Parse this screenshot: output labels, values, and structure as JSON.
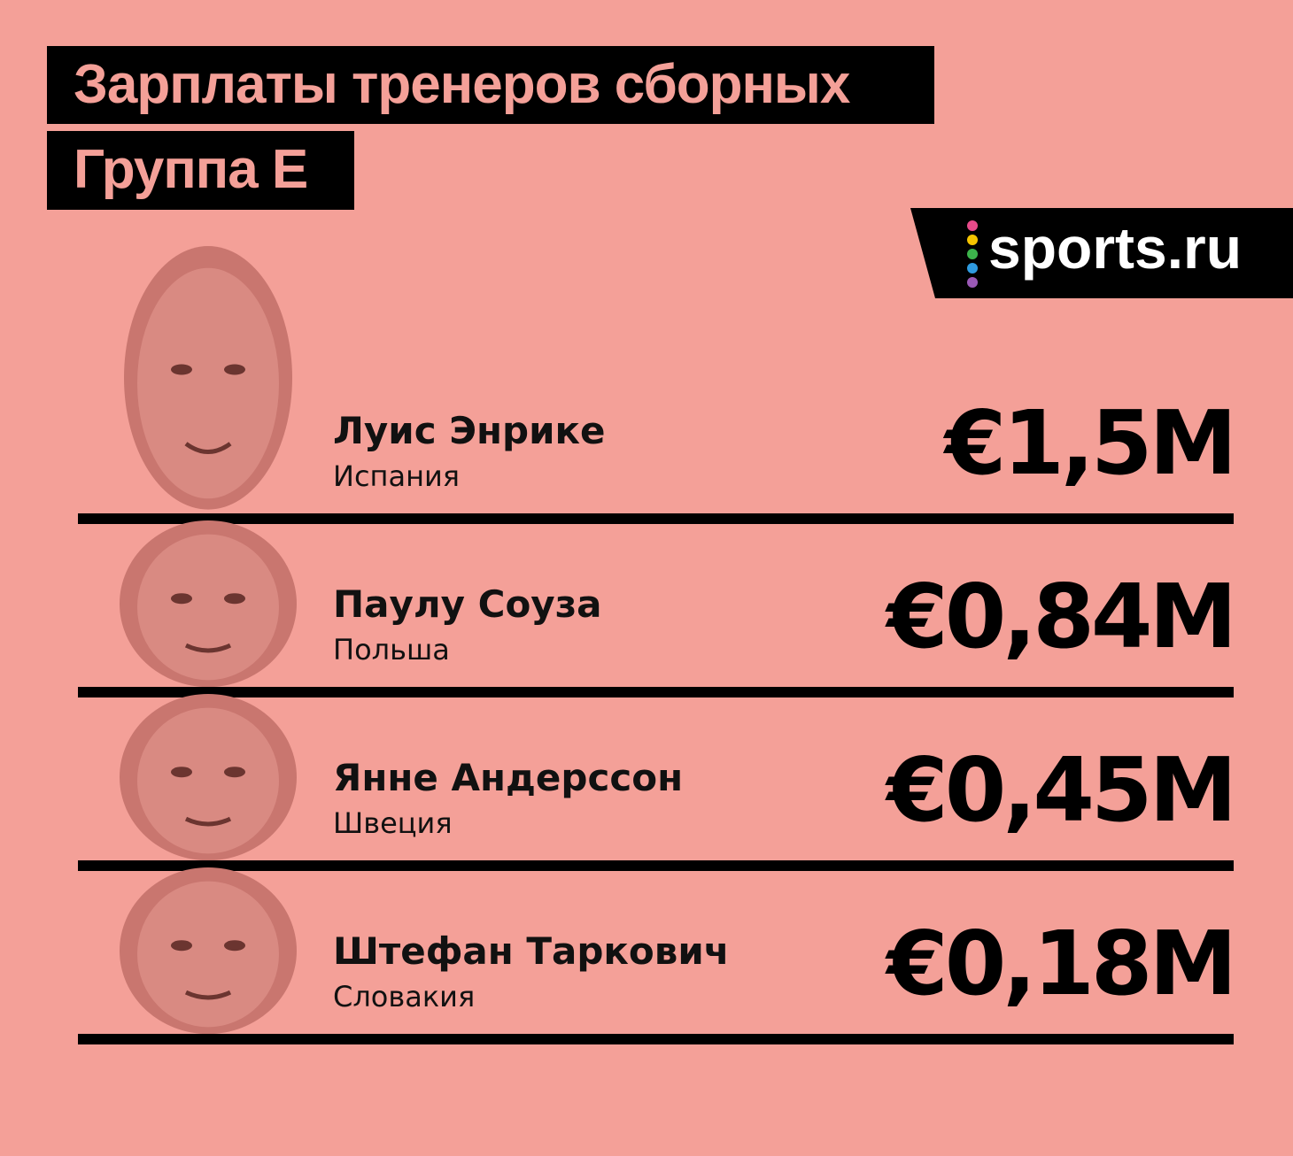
{
  "header": {
    "title": "Зарплаты тренеров сборных",
    "subtitle": "Группа Е"
  },
  "logo": {
    "text": "sports.ru"
  },
  "rows": [
    {
      "name": "Луис Энрике",
      "country": "Испания",
      "salary": "€1,5M"
    },
    {
      "name": "Паулу Соуза",
      "country": "Польша",
      "salary": "€0,84M"
    },
    {
      "name": "Янне Андерссон",
      "country": "Швеция",
      "salary": "€0,45M"
    },
    {
      "name": "Штефан Таркович",
      "country": "Словакия",
      "salary": "€0,18M"
    }
  ]
}
